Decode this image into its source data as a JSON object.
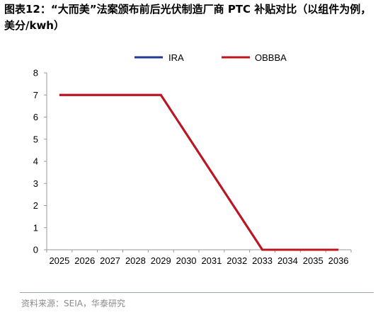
{
  "title": "图表12：“大而美”法案颁布前后光伏制造厂商 PTC 补贴对比（以组件为例，美分/kwh）",
  "source": "资料来源：SEIA，华泰研究",
  "chart_data": {
    "type": "line",
    "categories": [
      "2025",
      "2026",
      "2027",
      "2028",
      "2029",
      "2030",
      "2031",
      "2032",
      "2033",
      "2034",
      "2035",
      "2036"
    ],
    "ylim": [
      0,
      8
    ],
    "yticks": [
      "0",
      "1",
      "2",
      "3",
      "4",
      "5",
      "6",
      "7",
      "8"
    ],
    "grid": false,
    "legend_position": "top-center",
    "series": [
      {
        "name": "IRA",
        "color": "#1f3a93",
        "points": [
          [
            2025,
            7
          ],
          [
            2029,
            7
          ],
          [
            2033,
            0
          ],
          [
            2036,
            0
          ]
        ]
      },
      {
        "name": "OBBBA",
        "color": "#c0141e",
        "points": [
          [
            2025,
            7
          ],
          [
            2029,
            7
          ],
          [
            2033,
            0
          ],
          [
            2036,
            0
          ]
        ]
      }
    ]
  }
}
